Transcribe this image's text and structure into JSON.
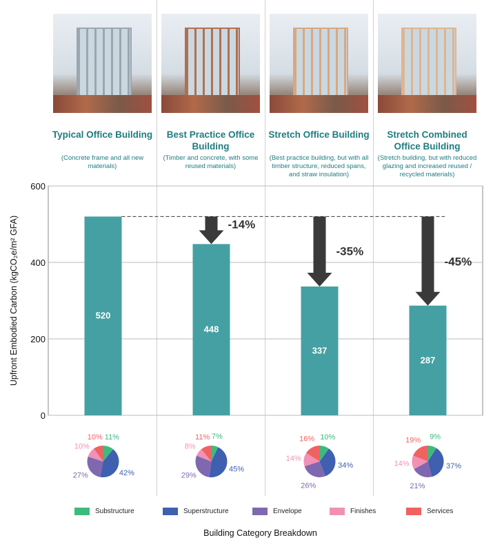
{
  "chart_data": {
    "type": "bar",
    "ylabel": "Upfront Embodied Carbon (kgCO₂e/m² GFA)",
    "xlabel": "Building Category Breakdown",
    "ylim": [
      0,
      600
    ],
    "yticks": [
      0,
      200,
      400,
      600
    ],
    "grid": true,
    "bar_color": "#45a0a3",
    "categories": [
      {
        "title": "Typical Office Building",
        "subtitle": "(Concrete frame and all new materials)",
        "value": 520,
        "reduction": "",
        "frame": "#9aa6b0"
      },
      {
        "title": "Best Practice Office Building",
        "subtitle": "(Timber and concrete, with some reused materials)",
        "value": 448,
        "reduction": "-14%",
        "frame": "#b07050"
      },
      {
        "title": "Stretch Office Building",
        "subtitle": "(Best practice building, but with all timber structure, reduced spans, and straw insulation)",
        "value": 337,
        "reduction": "-35%",
        "frame": "#d8a880"
      },
      {
        "title": "Stretch Combined Office Building",
        "subtitle": "(Stretch building, but with reduced glazing and increased reused / recycled materials)",
        "value": 287,
        "reduction": "-45%",
        "frame": "#e0b490"
      }
    ],
    "pie_series": [
      "Substructure",
      "Superstructure",
      "Envelope",
      "Finishes",
      "Services"
    ],
    "pie_colors": [
      "#3dbb7e",
      "#3f5fb0",
      "#8068b0",
      "#f191b5",
      "#f06262"
    ],
    "pies": [
      [
        11,
        42,
        27,
        10,
        10
      ],
      [
        7,
        45,
        29,
        8,
        11
      ],
      [
        10,
        34,
        26,
        14,
        16
      ],
      [
        9,
        37,
        21,
        14,
        19
      ]
    ],
    "legend_position": "bottom"
  }
}
